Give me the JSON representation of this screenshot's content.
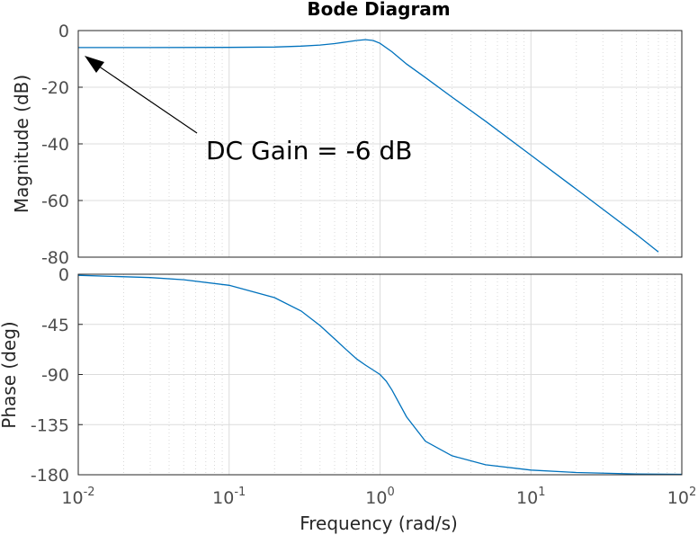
{
  "chart_data": {
    "type": "line",
    "title": "Bode Diagram",
    "xlabel": "Frequency  (rad/s)",
    "x_scale": "log",
    "xlim": [
      0.01,
      100
    ],
    "x_ticks": [
      {
        "base": "10",
        "exp": "-2"
      },
      {
        "base": "10",
        "exp": "-1"
      },
      {
        "base": "10",
        "exp": "0"
      },
      {
        "base": "10",
        "exp": "1"
      },
      {
        "base": "10",
        "exp": "2"
      }
    ],
    "grid": true,
    "line_color": "#0072bd",
    "panels": [
      {
        "name": "magnitude",
        "ylabel": "Magnitude (dB)",
        "ylim": [
          -80,
          0
        ],
        "y_ticks": [
          "0",
          "-20",
          "-40",
          "-60",
          "-80"
        ],
        "x": [
          0.01,
          0.03,
          0.1,
          0.2,
          0.3,
          0.4,
          0.5,
          0.6,
          0.7,
          0.8,
          0.9,
          1.0,
          1.2,
          1.5,
          2,
          3,
          5,
          10,
          20,
          50,
          70
        ],
        "y": [
          -6.0,
          -6.0,
          -5.95,
          -5.8,
          -5.5,
          -5.1,
          -4.6,
          -4.0,
          -3.5,
          -3.2,
          -3.5,
          -4.5,
          -7.5,
          -11.8,
          -16.6,
          -23.5,
          -32.0,
          -44.0,
          -56.0,
          -72.0,
          -78.2
        ]
      },
      {
        "name": "phase",
        "ylabel": "Phase (deg)",
        "ylim": [
          -180,
          0
        ],
        "y_ticks": [
          "0",
          "-45",
          "-90",
          "-135",
          "-180"
        ],
        "x": [
          0.01,
          0.03,
          0.05,
          0.1,
          0.2,
          0.3,
          0.4,
          0.5,
          0.6,
          0.7,
          0.8,
          0.9,
          1.0,
          1.1,
          1.2,
          1.5,
          2,
          3,
          5,
          10,
          20,
          50,
          100
        ],
        "y": [
          -1.0,
          -3.0,
          -4.9,
          -9.9,
          -21.0,
          -33.0,
          -46.0,
          -58.0,
          -68.0,
          -76.0,
          -81.5,
          -86.0,
          -90.0,
          -96.0,
          -104.0,
          -128.0,
          -150.0,
          -163.0,
          -171.0,
          -175.8,
          -178.0,
          -179.3,
          -179.6
        ]
      }
    ],
    "annotations": [
      {
        "text": "DC Gain = -6 dB",
        "points_to": {
          "x": 0.01,
          "y": -6
        }
      }
    ]
  }
}
